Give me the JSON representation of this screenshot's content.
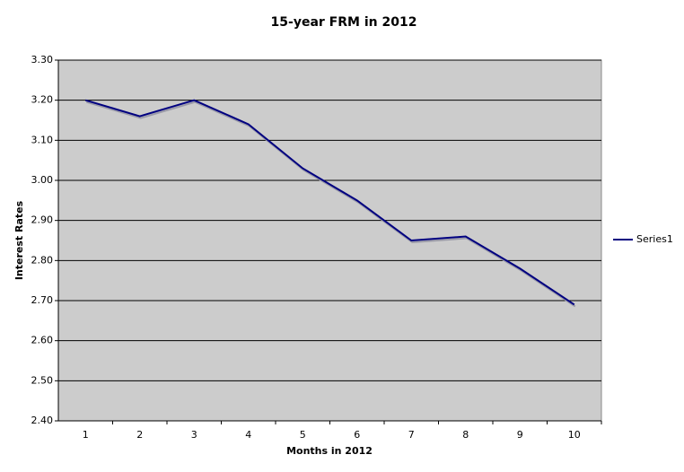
{
  "chart_data": {
    "type": "line",
    "title": "15-year FRM in 2012",
    "x_label": "Months in 2012",
    "y_label": "Interest Rates",
    "categories": [
      1,
      2,
      3,
      4,
      5,
      6,
      7,
      8,
      9,
      10
    ],
    "series": [
      {
        "name": "Series1",
        "color": "#000080",
        "values": [
          3.2,
          3.16,
          3.2,
          3.14,
          3.03,
          2.95,
          2.85,
          2.86,
          2.78,
          2.69
        ]
      }
    ],
    "ylim": [
      2.4,
      3.3
    ],
    "yticks": [
      {
        "value": 2.4,
        "label": "2.40"
      },
      {
        "value": 2.5,
        "label": "2.50"
      },
      {
        "value": 2.6,
        "label": "2.60"
      },
      {
        "value": 2.7,
        "label": "2.70"
      },
      {
        "value": 2.8,
        "label": "2.80"
      },
      {
        "value": 2.9,
        "label": "2.90"
      },
      {
        "value": 3.0,
        "label": "3.00"
      },
      {
        "value": 3.1,
        "label": "3.10"
      },
      {
        "value": 3.2,
        "label": "3.20"
      },
      {
        "value": 3.3,
        "label": "3.30"
      }
    ],
    "grid": true,
    "legend": "right",
    "plot_background": "#cccccc"
  }
}
